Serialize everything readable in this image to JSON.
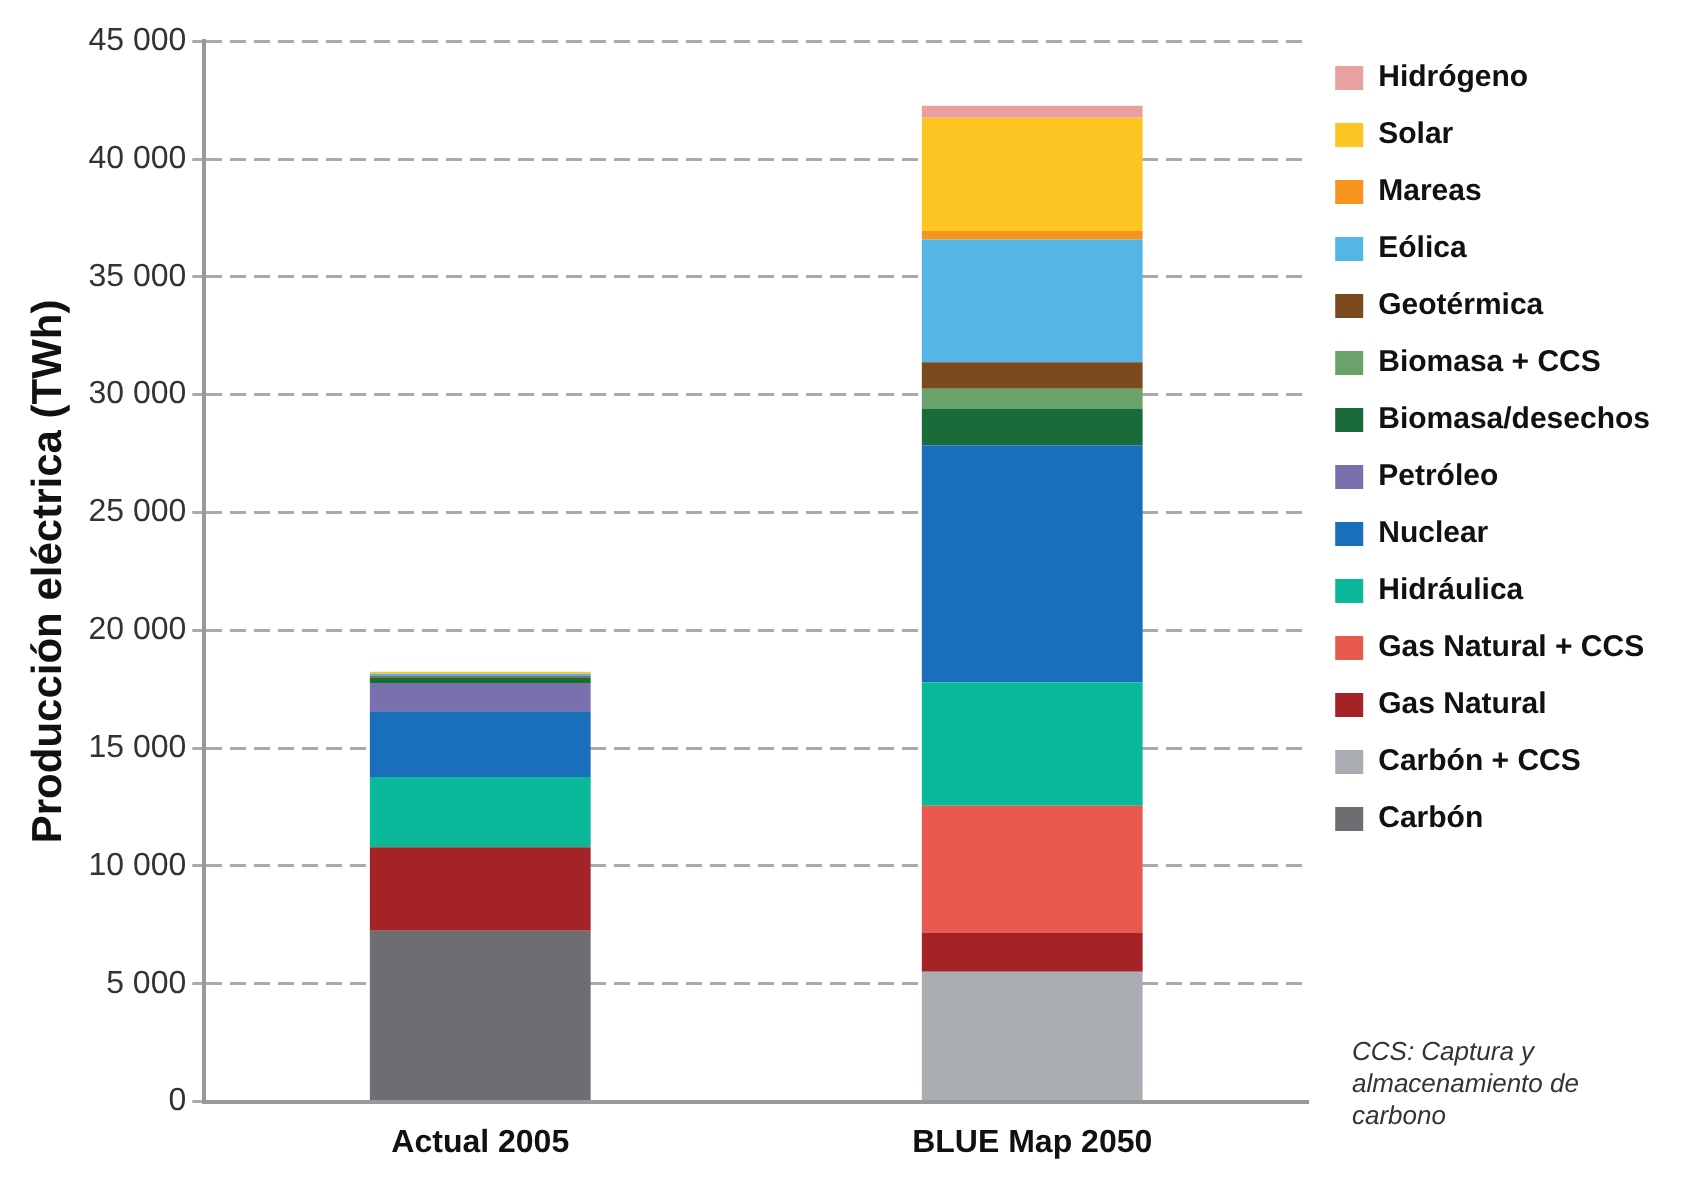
{
  "chart_data": {
    "type": "bar",
    "stacked": true,
    "ylabel": "Producción eléctrica (TWh)",
    "categories": [
      "Actual 2005",
      "BLUE Map 2050"
    ],
    "ylim": [
      0,
      45000
    ],
    "yticks": [
      {
        "value": 0,
        "label": "0"
      },
      {
        "value": 5000,
        "label": "5 000"
      },
      {
        "value": 10000,
        "label": "10 000"
      },
      {
        "value": 15000,
        "label": "15 000"
      },
      {
        "value": 20000,
        "label": "20 000"
      },
      {
        "value": 25000,
        "label": "25 000"
      },
      {
        "value": 30000,
        "label": "30 000"
      },
      {
        "value": 35000,
        "label": "35 000"
      },
      {
        "value": 40000,
        "label": "40 000"
      },
      {
        "value": 45000,
        "label": "45 000"
      }
    ],
    "grid": "y",
    "legend": "right",
    "annotations": [
      "CCS: Captura y almacenamiento de carbono"
    ],
    "series": [
      {
        "name": "Carbón",
        "color": "#6d6e71",
        "values": [
          7250,
          0
        ]
      },
      {
        "name": "Carbón + CCS",
        "color": "#a9acb0",
        "values": [
          0,
          5510
        ]
      },
      {
        "name": "Gas Natural",
        "color": "#a52226",
        "values": [
          3540,
          1650
        ]
      },
      {
        "name": "Gas Natural + CCS",
        "color": "#e85a50",
        "values": [
          0,
          5400
        ]
      },
      {
        "name": "Hidráulica",
        "color": "#0bb89a",
        "values": [
          2980,
          5240
        ]
      },
      {
        "name": "Nuclear",
        "color": "#1a6fba",
        "values": [
          2800,
          10050
        ]
      },
      {
        "name": "Petróleo",
        "color": "#7b6fb0",
        "values": [
          1160,
          0
        ]
      },
      {
        "name": "Biomasa/desechos",
        "color": "#1a6b3a",
        "values": [
          260,
          1560
        ]
      },
      {
        "name": "Biomasa + CCS",
        "color": "#6aa36a",
        "values": [
          0,
          840
        ]
      },
      {
        "name": "Geotérmica",
        "color": "#7b4a1e",
        "values": [
          60,
          1130
        ]
      },
      {
        "name": "Eólica",
        "color": "#55b5e5",
        "values": [
          110,
          5200
        ]
      },
      {
        "name": "Mareas",
        "color": "#f7941d",
        "values": [
          0,
          370
        ]
      },
      {
        "name": "Solar",
        "color": "#fcc522",
        "values": [
          80,
          4800
        ]
      },
      {
        "name": "Hidrógeno",
        "color": "#e8a0a0",
        "values": [
          0,
          510
        ]
      }
    ]
  }
}
